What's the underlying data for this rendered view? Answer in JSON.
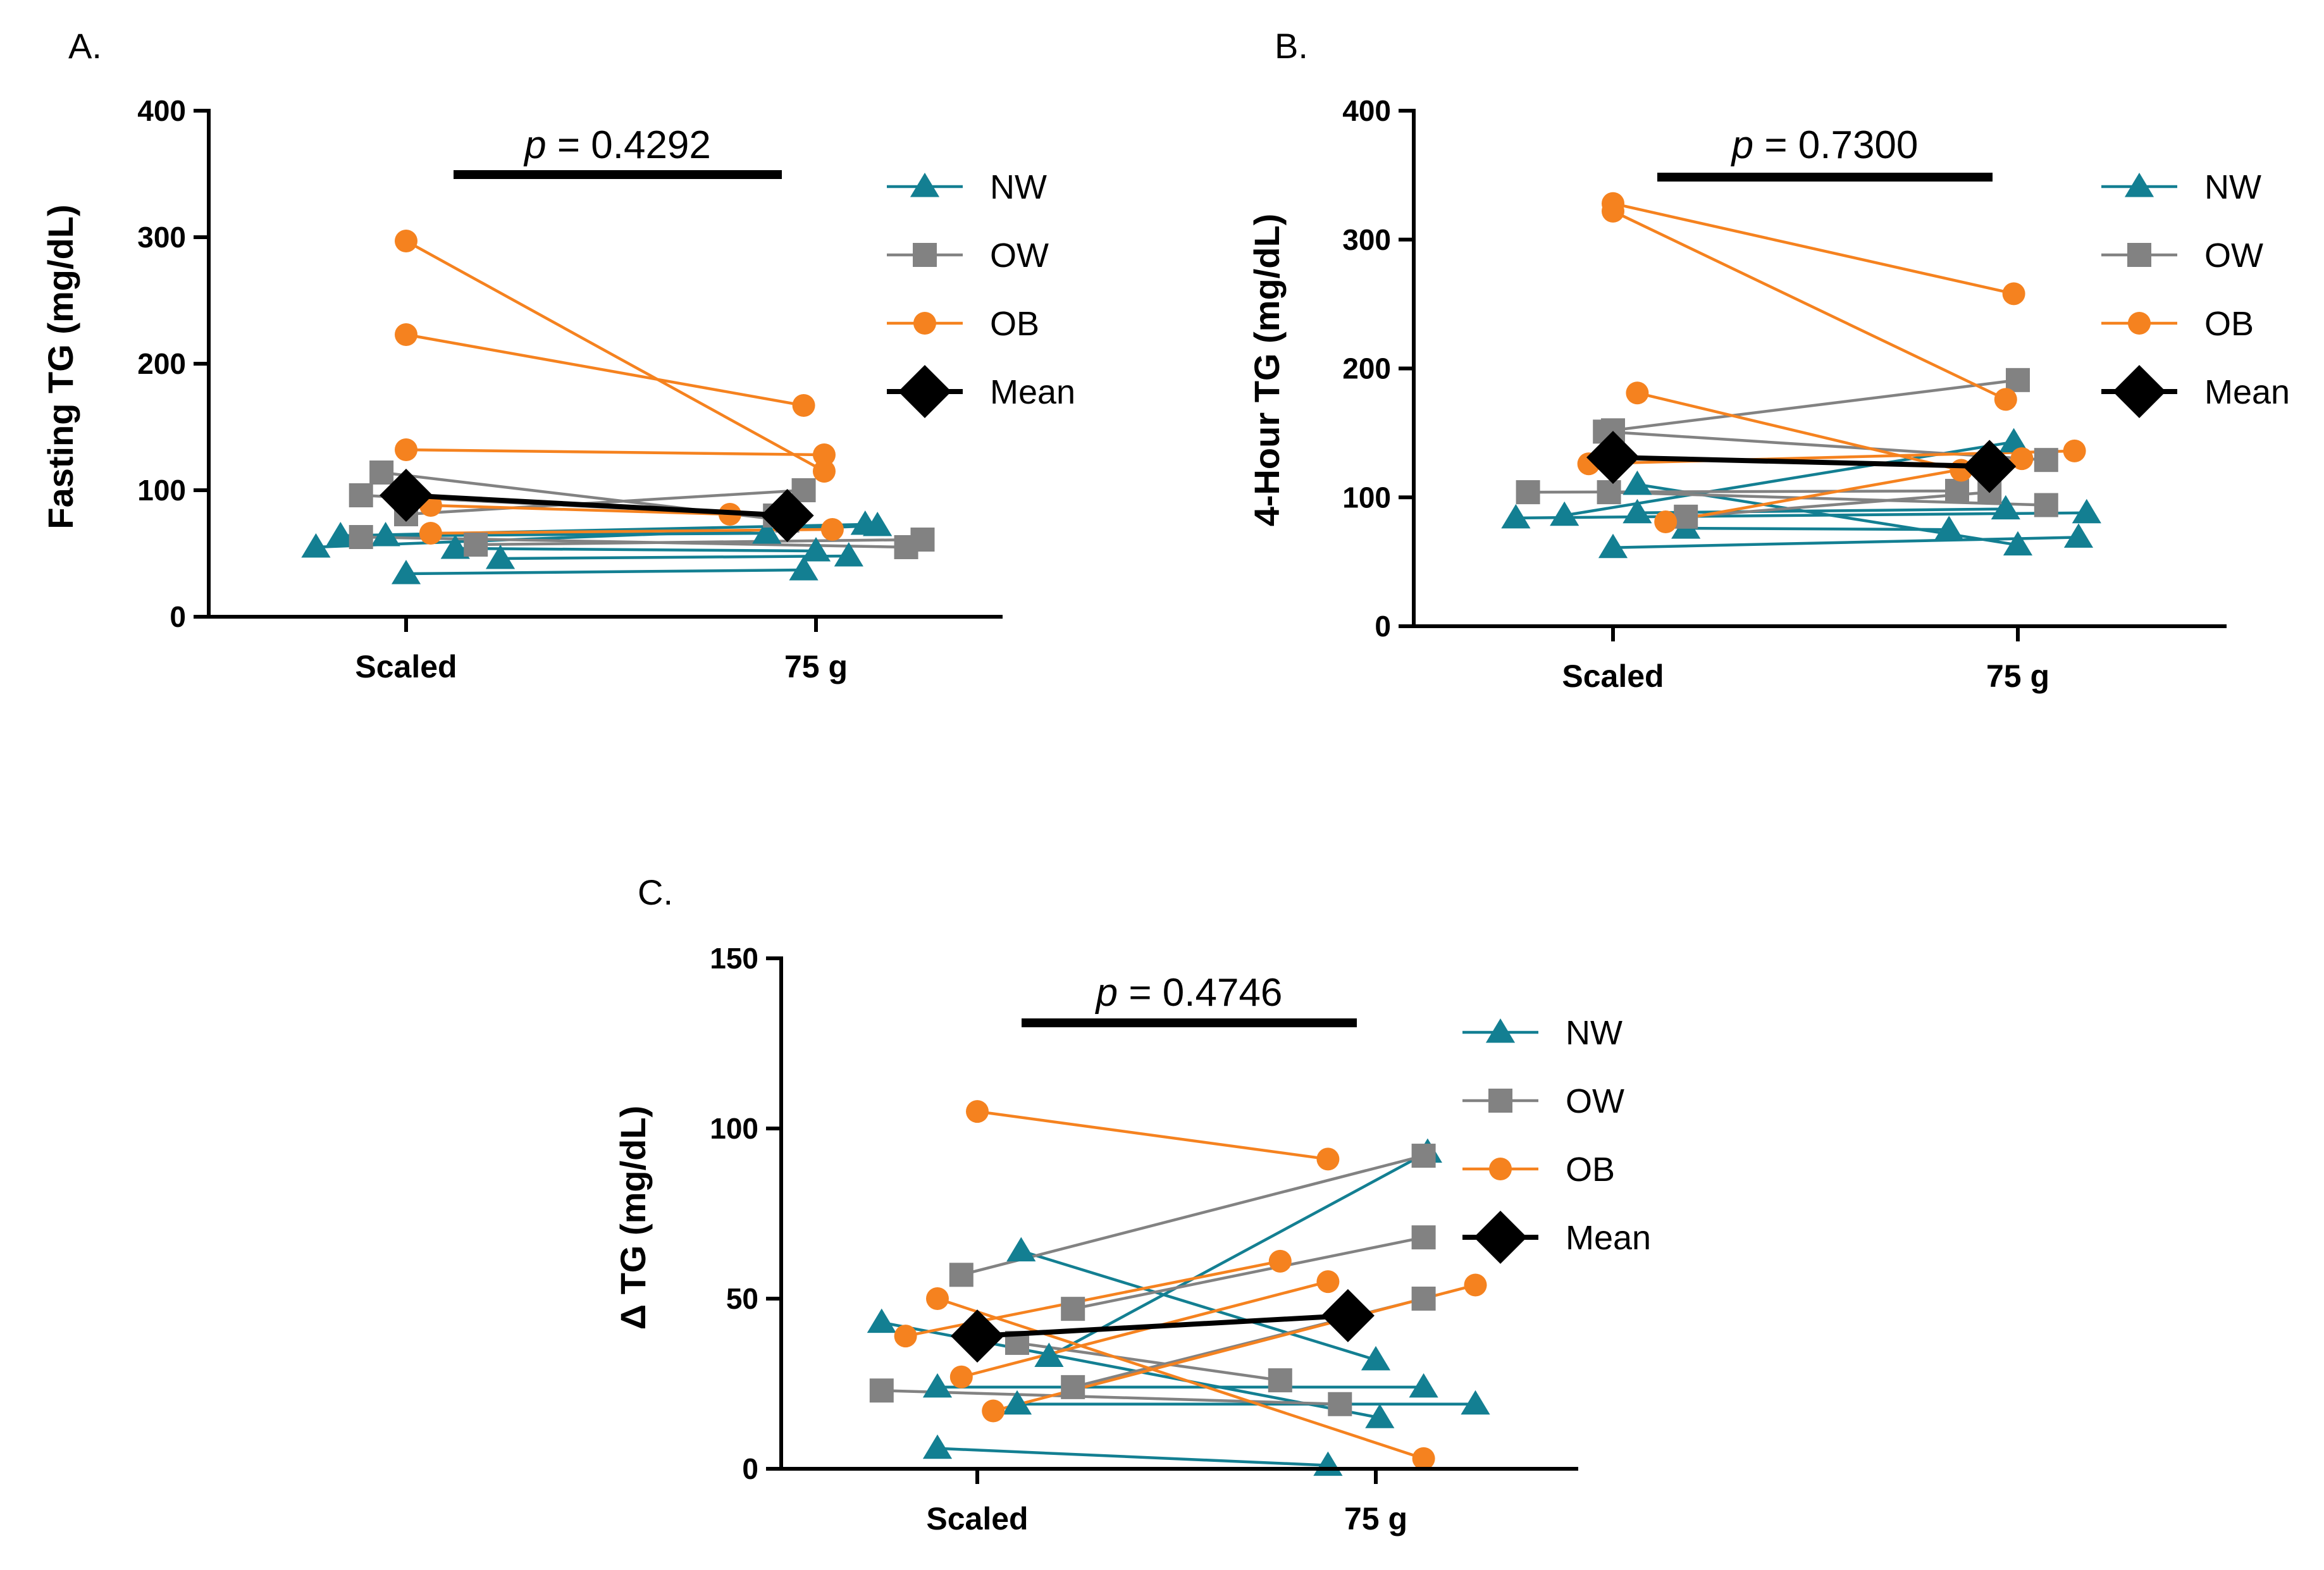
{
  "colors": {
    "NW": "#137f92",
    "OW": "#828282",
    "OB": "#f5821f",
    "Mean": "#000000"
  },
  "chart_data": [
    {
      "id": "A",
      "type": "scatter",
      "panel_label": "A.",
      "ylabel": "Fasting TG (mg/dL)",
      "categories": [
        "Scaled",
        "75 g"
      ],
      "ylim": [
        0,
        400
      ],
      "yticks": [
        "0",
        "100",
        "200",
        "300",
        "400"
      ],
      "p_italic": "p",
      "p_text": " = 0.4292",
      "legend": [
        {
          "key": "NW",
          "label": "NW",
          "marker": "triangle"
        },
        {
          "key": "OW",
          "label": "OW",
          "marker": "square"
        },
        {
          "key": "OB",
          "label": "OB",
          "marker": "circle"
        },
        {
          "key": "Mean",
          "label": "Mean",
          "marker": "diamond"
        }
      ],
      "pairs": [
        {
          "group": "NW",
          "x1": -0.22,
          "y1": 55,
          "x2": 1.15,
          "y2": 72
        },
        {
          "group": "NW",
          "x1": -0.16,
          "y1": 64,
          "x2": 1.12,
          "y2": 73
        },
        {
          "group": "NW",
          "x1": -0.05,
          "y1": 64,
          "x2": 0.88,
          "y2": 66
        },
        {
          "group": "NW",
          "x1": 0.0,
          "y1": 34,
          "x2": 0.97,
          "y2": 37
        },
        {
          "group": "NW",
          "x1": 0.12,
          "y1": 54,
          "x2": 1.0,
          "y2": 52
        },
        {
          "group": "NW",
          "x1": 0.23,
          "y1": 46,
          "x2": 1.08,
          "y2": 48
        },
        {
          "group": "OW",
          "x1": -0.11,
          "y1": 63,
          "x2": 1.22,
          "y2": 55
        },
        {
          "group": "OW",
          "x1": -0.11,
          "y1": 96,
          "x2": 0.9,
          "y2": 80
        },
        {
          "group": "OW",
          "x1": -0.06,
          "y1": 114,
          "x2": 0.93,
          "y2": 76
        },
        {
          "group": "OW",
          "x1": 0.0,
          "y1": 81,
          "x2": 0.97,
          "y2": 100
        },
        {
          "group": "OW",
          "x1": 0.17,
          "y1": 57,
          "x2": 1.26,
          "y2": 61
        },
        {
          "group": "OB",
          "x1": 0.0,
          "y1": 297,
          "x2": 1.02,
          "y2": 115
        },
        {
          "group": "OB",
          "x1": 0.0,
          "y1": 223,
          "x2": 0.97,
          "y2": 167
        },
        {
          "group": "OB",
          "x1": 0.0,
          "y1": 132,
          "x2": 1.02,
          "y2": 128
        },
        {
          "group": "OB",
          "x1": 0.06,
          "y1": 88,
          "x2": 0.79,
          "y2": 81
        },
        {
          "group": "OB",
          "x1": 0.06,
          "y1": 66,
          "x2": 1.04,
          "y2": 69
        }
      ],
      "mean": {
        "y1": 96,
        "y2": 80
      }
    },
    {
      "id": "B",
      "type": "scatter",
      "panel_label": "B.",
      "ylabel": "4-Hour TG (mg/dL)",
      "categories": [
        "Scaled",
        "75 g"
      ],
      "ylim": [
        0,
        400
      ],
      "yticks": [
        "0",
        "100",
        "200",
        "300",
        "400"
      ],
      "p_italic": "p",
      "p_text": " = 0.7300",
      "legend": [
        {
          "key": "NW",
          "label": "NW",
          "marker": "triangle"
        },
        {
          "key": "OW",
          "label": "OW",
          "marker": "square"
        },
        {
          "key": "OB",
          "label": "OB",
          "marker": "circle"
        },
        {
          "key": "Mean",
          "label": "Mean",
          "marker": "diamond"
        }
      ],
      "pairs": [
        {
          "group": "NW",
          "x1": -0.24,
          "y1": 84,
          "x2": 1.17,
          "y2": 88
        },
        {
          "group": "NW",
          "x1": -0.12,
          "y1": 86,
          "x2": 0.99,
          "y2": 143
        },
        {
          "group": "NW",
          "x1": 0.0,
          "y1": 61,
          "x2": 1.15,
          "y2": 69
        },
        {
          "group": "NW",
          "x1": 0.06,
          "y1": 88,
          "x2": 0.97,
          "y2": 91
        },
        {
          "group": "NW",
          "x1": 0.06,
          "y1": 110,
          "x2": 1.0,
          "y2": 63
        },
        {
          "group": "NW",
          "x1": 0.18,
          "y1": 76,
          "x2": 0.83,
          "y2": 75
        },
        {
          "group": "OW",
          "x1": -0.21,
          "y1": 104,
          "x2": 0.85,
          "y2": 105
        },
        {
          "group": "OW",
          "x1": -0.01,
          "y1": 104,
          "x2": 1.07,
          "y2": 94
        },
        {
          "group": "OW",
          "x1": -0.02,
          "y1": 151,
          "x2": 1.07,
          "y2": 129
        },
        {
          "group": "OW",
          "x1": 0.0,
          "y1": 152,
          "x2": 1.0,
          "y2": 191
        },
        {
          "group": "OW",
          "x1": 0.18,
          "y1": 85,
          "x2": 0.93,
          "y2": 104
        },
        {
          "group": "OB",
          "x1": 0.0,
          "y1": 328,
          "x2": 0.99,
          "y2": 258
        },
        {
          "group": "OB",
          "x1": 0.0,
          "y1": 322,
          "x2": 0.97,
          "y2": 176
        },
        {
          "group": "OB",
          "x1": 0.06,
          "y1": 181,
          "x2": 0.86,
          "y2": 121
        },
        {
          "group": "OB",
          "x1": -0.06,
          "y1": 126,
          "x2": 1.14,
          "y2": 136
        },
        {
          "group": "OB",
          "x1": 0.13,
          "y1": 81,
          "x2": 1.01,
          "y2": 130
        }
      ],
      "mean": {
        "y1": 131,
        "y2": 124
      }
    },
    {
      "id": "C",
      "type": "scatter",
      "panel_label": "C.",
      "ylabel": "Δ TG (mg/dL)",
      "categories": [
        "Scaled",
        "75 g"
      ],
      "ylim": [
        0,
        150
      ],
      "yticks": [
        "0",
        "50",
        "100",
        "150"
      ],
      "p_italic": "p",
      "p_text": " = 0.4746",
      "legend": [
        {
          "key": "NW",
          "label": "NW",
          "marker": "triangle"
        },
        {
          "key": "OW",
          "label": "OW",
          "marker": "square"
        },
        {
          "key": "OB",
          "label": "OB",
          "marker": "circle"
        },
        {
          "key": "Mean",
          "label": "Mean",
          "marker": "diamond"
        }
      ],
      "pairs": [
        {
          "group": "NW",
          "x1": -0.24,
          "y1": 43,
          "x2": 1.01,
          "y2": 15
        },
        {
          "group": "NW",
          "x1": -0.1,
          "y1": 24,
          "x2": 1.12,
          "y2": 24
        },
        {
          "group": "NW",
          "x1": -0.1,
          "y1": 6,
          "x2": 0.88,
          "y2": 1
        },
        {
          "group": "NW",
          "x1": 0.1,
          "y1": 19,
          "x2": 1.25,
          "y2": 19
        },
        {
          "group": "NW",
          "x1": 0.11,
          "y1": 64,
          "x2": 1.0,
          "y2": 32
        },
        {
          "group": "NW",
          "x1": 0.18,
          "y1": 33,
          "x2": 1.13,
          "y2": 93
        },
        {
          "group": "OW",
          "x1": -0.24,
          "y1": 23,
          "x2": 0.91,
          "y2": 19
        },
        {
          "group": "OW",
          "x1": -0.04,
          "y1": 57,
          "x2": 1.12,
          "y2": 92
        },
        {
          "group": "OW",
          "x1": 0.1,
          "y1": 37,
          "x2": 0.76,
          "y2": 26
        },
        {
          "group": "OW",
          "x1": 0.24,
          "y1": 47,
          "x2": 1.12,
          "y2": 68
        },
        {
          "group": "OW",
          "x1": 0.24,
          "y1": 24,
          "x2": 1.12,
          "y2": 50
        },
        {
          "group": "OB",
          "x1": 0.0,
          "y1": 105,
          "x2": 0.88,
          "y2": 91
        },
        {
          "group": "OB",
          "x1": -0.1,
          "y1": 50,
          "x2": 1.12,
          "y2": 3
        },
        {
          "group": "OB",
          "x1": -0.18,
          "y1": 39,
          "x2": 0.76,
          "y2": 61
        },
        {
          "group": "OB",
          "x1": 0.04,
          "y1": 17,
          "x2": 1.25,
          "y2": 54
        },
        {
          "group": "OB",
          "x1": -0.04,
          "y1": 27,
          "x2": 0.88,
          "y2": 55
        }
      ],
      "mean": {
        "y1": 39,
        "y2": 45
      }
    }
  ]
}
